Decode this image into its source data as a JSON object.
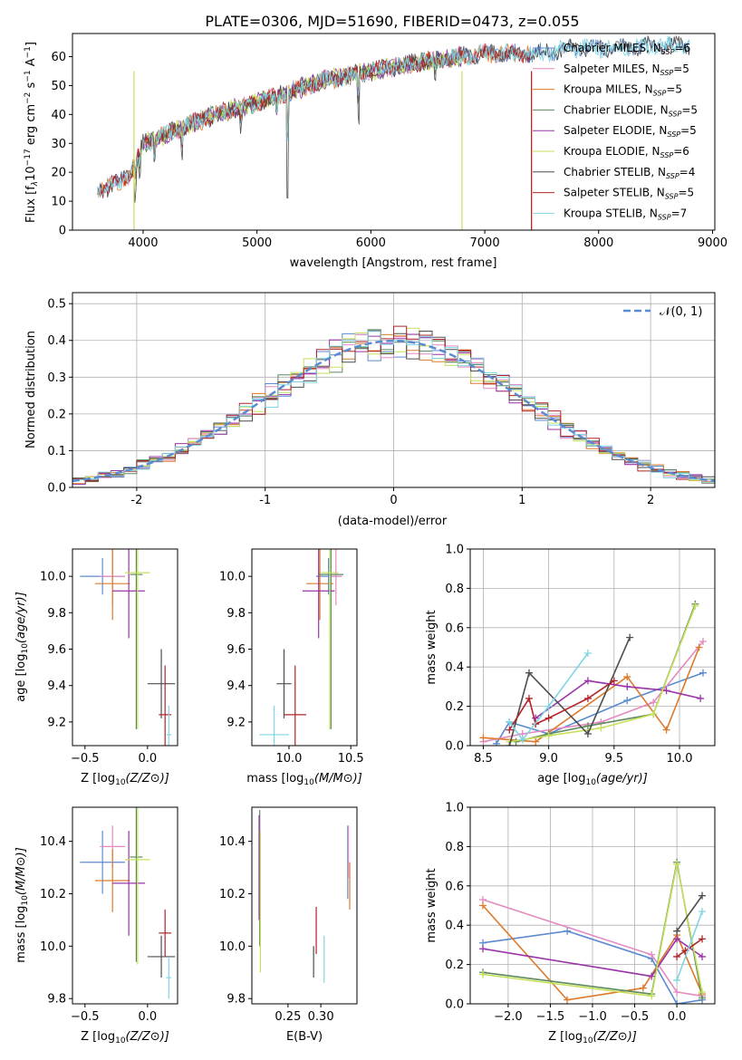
{
  "figure": {
    "title": "PLATE=0306, MJD=51690, FIBERID=0473, z=0.055"
  },
  "model_colors": {
    "Chabrier MILES": "#5b8bd0",
    "Salpeter MILES": "#e58ac0",
    "Kroupa MILES": "#dd7a2c",
    "Chabrier ELODIE": "#5e8a5e",
    "Salpeter ELODIE": "#9a34a8",
    "Kroupa ELODIE": "#c6e05a",
    "Chabrier STELIB": "#4d4d4d",
    "Salpeter STELIB": "#b0242a",
    "Kroupa STELIB": "#7fd6e2"
  },
  "chart_data": [
    {
      "id": "spectrum",
      "type": "line",
      "xlabel": "wavelength [Angstrom, rest frame]",
      "ylabel_parts": [
        "Flux [f",
        "λ",
        "10",
        "−17",
        " erg cm",
        "−2",
        " s",
        "−1",
        " A",
        "−1",
        "]"
      ],
      "xlim": [
        3380,
        9020
      ],
      "ylim": [
        0,
        68
      ],
      "xticks": [
        4000,
        5000,
        6000,
        7000,
        8000,
        9000
      ],
      "yticks": [
        0,
        10,
        20,
        30,
        40,
        50,
        60
      ],
      "grid": false,
      "legend_position": "upper-right",
      "legend": [
        {
          "model": "Chabrier MILES",
          "n": "6"
        },
        {
          "model": "Salpeter MILES",
          "n": "5"
        },
        {
          "model": "Kroupa MILES",
          "n": "5"
        },
        {
          "model": "Chabrier ELODIE",
          "n": "5"
        },
        {
          "model": "Salpeter ELODIE",
          "n": "5"
        },
        {
          "model": "Kroupa ELODIE",
          "n": "6"
        },
        {
          "model": "Chabrier STELIB",
          "n": "4"
        },
        {
          "model": "Salpeter STELIB",
          "n": "5"
        },
        {
          "model": "Kroupa STELIB",
          "n": "7"
        }
      ],
      "legend_prefix_n": "N",
      "legend_sub": "SSP",
      "continuum": {
        "x": [
          3600,
          3700,
          3800,
          3900,
          4000,
          4200,
          4500,
          4800,
          5000,
          5300,
          5600,
          6000,
          6400,
          6800,
          7000,
          7400,
          7800,
          8200,
          8600,
          8800
        ],
        "y": [
          14,
          15,
          17,
          20,
          30,
          33,
          38,
          42,
          44,
          48,
          52,
          55,
          58,
          60,
          61,
          61,
          63,
          63,
          64,
          64
        ]
      },
      "model_ranges": [
        {
          "model": "Chabrier MILES",
          "x_min": 3600,
          "x_max": 8800
        },
        {
          "model": "Salpeter MILES",
          "x_min": 3600,
          "x_max": 7400
        },
        {
          "model": "Kroupa MILES",
          "x_min": 3600,
          "x_max": 7400
        },
        {
          "model": "Chabrier ELODIE",
          "x_min": 3900,
          "x_max": 6800
        },
        {
          "model": "Salpeter ELODIE",
          "x_min": 3900,
          "x_max": 6800
        },
        {
          "model": "Kroupa ELODIE",
          "x_min": 3900,
          "x_max": 6800
        },
        {
          "model": "Chabrier STELIB",
          "x_min": 3600,
          "x_max": 8800
        },
        {
          "model": "Salpeter STELIB",
          "x_min": 3600,
          "x_max": 7400
        },
        {
          "model": "Kroupa STELIB",
          "x_min": 3600,
          "x_max": 8800
        }
      ]
    },
    {
      "id": "residuals",
      "type": "step-histogram",
      "xlabel": "(data-model)/error",
      "ylabel": "Normed distribution",
      "xlim": [
        -2.5,
        2.5
      ],
      "ylim": [
        0,
        0.53
      ],
      "xticks": [
        -2,
        -1,
        0,
        1,
        2
      ],
      "yticks": [
        0.0,
        0.1,
        0.2,
        0.3,
        0.4,
        0.5
      ],
      "grid": true,
      "bin_width": 0.1,
      "legend_position": "upper-right",
      "reference_label": "𝒩(0, 1)",
      "reference": {
        "type": "gaussian",
        "mean": 0,
        "sigma": 1
      }
    },
    {
      "id": "age-vs-Z",
      "type": "errorbar",
      "xlabel": "Z [log10(Z/Z⊙)]",
      "ylabel": "age  [log10(age/yr)]",
      "xlim": [
        -0.6,
        0.24
      ],
      "ylim": [
        9.07,
        10.15
      ],
      "xticks": [
        -0.5,
        0.0
      ],
      "xtick_labels": [
        "−0.5",
        "0.0"
      ],
      "yticks": [
        9.2,
        9.4,
        9.6,
        9.8,
        10.0
      ],
      "points": [
        {
          "model": "Chabrier MILES",
          "x": -0.36,
          "y": 10.0,
          "xerr": 0.18,
          "yerr": 0.1
        },
        {
          "model": "Salpeter MILES",
          "x": -0.28,
          "y": 10.0,
          "xerr": 0.1,
          "yerr": 0.16
        },
        {
          "model": "Kroupa MILES",
          "x": -0.28,
          "y": 9.96,
          "xerr": 0.14,
          "yerr": 0.2
        },
        {
          "model": "Chabrier ELODIE",
          "x": -0.09,
          "y": 10.01,
          "xerr": 0.05,
          "yerr": 0.85
        },
        {
          "model": "Salpeter ELODIE",
          "x": -0.15,
          "y": 9.92,
          "xerr": 0.13,
          "yerr": 0.26
        },
        {
          "model": "Kroupa ELODIE",
          "x": -0.08,
          "y": 10.02,
          "xerr": 0.1,
          "yerr": 0.86
        },
        {
          "model": "Chabrier STELIB",
          "x": 0.11,
          "y": 9.41,
          "xerr": 0.11,
          "yerr": 0.19
        },
        {
          "model": "Salpeter STELIB",
          "x": 0.14,
          "y": 9.24,
          "xerr": 0.05,
          "yerr": 0.27
        },
        {
          "model": "Kroupa STELIB",
          "x": 0.17,
          "y": 9.13,
          "xerr": 0.02,
          "yerr": 0.16
        }
      ]
    },
    {
      "id": "age-vs-mass",
      "type": "errorbar",
      "xlabel": "mass [log10(M/M⊙)]",
      "ylabel": "",
      "xlim": [
        9.7,
        10.55
      ],
      "ylim": [
        9.07,
        10.15
      ],
      "xticks": [
        10.0,
        10.5
      ],
      "xtick_labels": [
        "10.0",
        "10.5"
      ],
      "yticks": [
        9.2,
        9.4,
        9.6,
        9.8,
        10.0
      ],
      "points": [
        {
          "model": "Chabrier MILES",
          "x": 10.32,
          "y": 10.0,
          "xerr": 0.1,
          "yerr": 0.1
        },
        {
          "model": "Salpeter MILES",
          "x": 10.38,
          "y": 10.0,
          "xerr": 0.05,
          "yerr": 0.16
        },
        {
          "model": "Kroupa MILES",
          "x": 10.25,
          "y": 9.96,
          "xerr": 0.11,
          "yerr": 0.2
        },
        {
          "model": "Chabrier ELODIE",
          "x": 10.34,
          "y": 10.01,
          "xerr": 0.1,
          "yerr": 0.85
        },
        {
          "model": "Salpeter ELODIE",
          "x": 10.24,
          "y": 9.92,
          "xerr": 0.13,
          "yerr": 0.26
        },
        {
          "model": "Kroupa ELODIE",
          "x": 10.33,
          "y": 10.02,
          "xerr": 0.07,
          "yerr": 0.86
        },
        {
          "model": "Chabrier STELIB",
          "x": 9.96,
          "y": 9.41,
          "xerr": 0.06,
          "yerr": 0.19
        },
        {
          "model": "Salpeter STELIB",
          "x": 10.05,
          "y": 9.24,
          "xerr": 0.09,
          "yerr": 0.27
        },
        {
          "model": "Kroupa STELIB",
          "x": 9.88,
          "y": 9.13,
          "xerr": 0.12,
          "yerr": 0.16
        }
      ]
    },
    {
      "id": "weight-vs-age",
      "type": "line",
      "xlabel": "age  [log10(age/yr)]",
      "ylabel": "mass weight",
      "xlim": [
        8.4,
        10.27
      ],
      "ylim": [
        0,
        1.0
      ],
      "xticks": [
        8.5,
        9.0,
        9.5,
        10.0
      ],
      "xtick_labels": [
        "8.5",
        "9.0",
        "9.5",
        "10.0"
      ],
      "yticks": [
        0.0,
        0.2,
        0.4,
        0.6,
        0.8,
        1.0
      ],
      "grid": true,
      "series": [
        {
          "model": "Chabrier MILES",
          "x": [
            8.6,
            8.7,
            9.0,
            9.6,
            10.18
          ],
          "y": [
            0.01,
            0.12,
            0.06,
            0.23,
            0.37
          ]
        },
        {
          "model": "Salpeter MILES",
          "x": [
            8.5,
            8.8,
            9.4,
            9.8,
            10.18
          ],
          "y": [
            0.02,
            0.06,
            0.12,
            0.22,
            0.53
          ]
        },
        {
          "model": "Kroupa MILES",
          "x": [
            8.5,
            8.9,
            9.6,
            9.9,
            10.15
          ],
          "y": [
            0.04,
            0.02,
            0.35,
            0.08,
            0.5
          ]
        },
        {
          "model": "Chabrier ELODIE",
          "x": [
            8.75,
            9.0,
            9.3,
            9.8,
            10.12
          ],
          "y": [
            0.02,
            0.06,
            0.1,
            0.16,
            0.72
          ]
        },
        {
          "model": "Salpeter ELODIE",
          "x": [
            8.9,
            9.3,
            9.6,
            9.9,
            10.16
          ],
          "y": [
            0.14,
            0.33,
            0.3,
            0.28,
            0.24
          ]
        },
        {
          "model": "Kroupa ELODIE",
          "x": [
            8.7,
            9.0,
            9.4,
            9.8,
            10.12
          ],
          "y": [
            0.02,
            0.05,
            0.09,
            0.16,
            0.71
          ]
        },
        {
          "model": "Chabrier STELIB",
          "x": [
            8.7,
            8.85,
            9.3,
            9.62
          ],
          "y": [
            0.0,
            0.37,
            0.06,
            0.55
          ]
        },
        {
          "model": "Salpeter STELIB",
          "x": [
            8.7,
            8.85,
            8.9,
            9.0,
            9.3,
            9.5
          ],
          "y": [
            0.08,
            0.24,
            0.11,
            0.14,
            0.24,
            0.33
          ]
        },
        {
          "model": "Kroupa STELIB",
          "x": [
            8.7,
            8.8,
            9.0,
            9.3
          ],
          "y": [
            0.12,
            0.03,
            0.2,
            0.47
          ]
        }
      ]
    },
    {
      "id": "mass-vs-Z",
      "type": "errorbar",
      "xlabel": "Z [log10(Z/Z⊙)]",
      "ylabel": "mass [log10(M/M⊙)]",
      "xlim": [
        -0.6,
        0.24
      ],
      "ylim": [
        9.78,
        10.53
      ],
      "xticks": [
        -0.5,
        0.0
      ],
      "xtick_labels": [
        "−0.5",
        "0.0"
      ],
      "yticks": [
        9.8,
        10.0,
        10.2,
        10.4
      ],
      "points": [
        {
          "model": "Chabrier MILES",
          "x": -0.36,
          "y": 10.32,
          "xerr": 0.18,
          "yerr": 0.12
        },
        {
          "model": "Salpeter MILES",
          "x": -0.28,
          "y": 10.38,
          "xerr": 0.1,
          "yerr": 0.08
        },
        {
          "model": "Kroupa MILES",
          "x": -0.28,
          "y": 10.25,
          "xerr": 0.14,
          "yerr": 0.12
        },
        {
          "model": "Chabrier ELODIE",
          "x": -0.09,
          "y": 10.34,
          "xerr": 0.05,
          "yerr": 0.4
        },
        {
          "model": "Salpeter ELODIE",
          "x": -0.15,
          "y": 10.24,
          "xerr": 0.13,
          "yerr": 0.2
        },
        {
          "model": "Kroupa ELODIE",
          "x": -0.08,
          "y": 10.33,
          "xerr": 0.1,
          "yerr": 0.4
        },
        {
          "model": "Chabrier STELIB",
          "x": 0.11,
          "y": 9.96,
          "xerr": 0.11,
          "yerr": 0.08
        },
        {
          "model": "Salpeter STELIB",
          "x": 0.14,
          "y": 10.05,
          "xerr": 0.05,
          "yerr": 0.09
        },
        {
          "model": "Kroupa STELIB",
          "x": 0.17,
          "y": 9.88,
          "xerr": 0.02,
          "yerr": 0.08
        }
      ]
    },
    {
      "id": "mass-vs-ebv",
      "type": "errorbar",
      "xlabel": "E(B-V)",
      "ylabel": "",
      "xlim": [
        0.195,
        0.355
      ],
      "ylim": [
        9.78,
        10.53
      ],
      "xticks": [
        0.25,
        0.3
      ],
      "xtick_labels": [
        "0.25",
        "0.30"
      ],
      "yticks": [
        9.8,
        10.0,
        10.2,
        10.4
      ],
      "points": [
        {
          "model": "Chabrier MILES",
          "x": 0.341,
          "y": 10.32,
          "xerr": 0,
          "yerr": 0.14
        },
        {
          "model": "Salpeter MILES",
          "x": 0.342,
          "y": 10.36,
          "xerr": 0,
          "yerr": 0.1
        },
        {
          "model": "Kroupa MILES",
          "x": 0.344,
          "y": 10.23,
          "xerr": 0,
          "yerr": 0.09
        },
        {
          "model": "Chabrier ELODIE",
          "x": 0.207,
          "y": 10.26,
          "xerr": 0,
          "yerr": 0.26
        },
        {
          "model": "Salpeter ELODIE",
          "x": 0.206,
          "y": 10.3,
          "xerr": 0,
          "yerr": 0.2
        },
        {
          "model": "Kroupa ELODIE",
          "x": 0.208,
          "y": 10.17,
          "xerr": 0,
          "yerr": 0.27
        },
        {
          "model": "Chabrier STELIB",
          "x": 0.289,
          "y": 9.94,
          "xerr": 0,
          "yerr": 0.06
        },
        {
          "model": "Salpeter STELIB",
          "x": 0.293,
          "y": 10.06,
          "xerr": 0,
          "yerr": 0.09
        },
        {
          "model": "Kroupa STELIB",
          "x": 0.305,
          "y": 9.95,
          "xerr": 0,
          "yerr": 0.09
        }
      ]
    },
    {
      "id": "weight-vs-Z",
      "type": "line",
      "xlabel": "Z [log10(Z/Z⊙)]",
      "ylabel": "mass weight",
      "xlim": [
        -2.45,
        0.45
      ],
      "ylim": [
        0,
        1.0
      ],
      "xticks": [
        -2.0,
        -1.5,
        -1.0,
        -0.5,
        0.0
      ],
      "xtick_labels": [
        "−2.0",
        "−1.5",
        "−1.0",
        "−0.5",
        "0.0"
      ],
      "yticks": [
        0.0,
        0.2,
        0.4,
        0.6,
        0.8,
        1.0
      ],
      "grid": true,
      "series": [
        {
          "model": "Chabrier MILES",
          "x": [
            -2.3,
            -1.3,
            -0.3,
            0.0,
            0.3
          ],
          "y": [
            0.31,
            0.37,
            0.23,
            0.0,
            0.02
          ]
        },
        {
          "model": "Salpeter MILES",
          "x": [
            -2.3,
            -0.3,
            0.0,
            0.3
          ],
          "y": [
            0.53,
            0.25,
            0.06,
            0.04
          ]
        },
        {
          "model": "Kroupa MILES",
          "x": [
            -2.3,
            -1.3,
            -0.4,
            0.0,
            0.3
          ],
          "y": [
            0.5,
            0.02,
            0.08,
            0.35,
            0.05
          ]
        },
        {
          "model": "Chabrier ELODIE",
          "x": [
            -2.3,
            -0.3,
            0.0,
            0.3
          ],
          "y": [
            0.16,
            0.05,
            0.72,
            0.03
          ]
        },
        {
          "model": "Salpeter ELODIE",
          "x": [
            -2.3,
            -0.3,
            0.0,
            0.3
          ],
          "y": [
            0.28,
            0.14,
            0.33,
            0.24
          ]
        },
        {
          "model": "Kroupa ELODIE",
          "x": [
            -2.3,
            -0.3,
            0.0,
            0.3
          ],
          "y": [
            0.15,
            0.04,
            0.71,
            0.06
          ]
        },
        {
          "model": "Chabrier STELIB",
          "x": [
            0.0,
            0.3
          ],
          "y": [
            0.37,
            0.55
          ]
        },
        {
          "model": "Salpeter STELIB",
          "x": [
            0.0,
            0.1,
            0.3
          ],
          "y": [
            0.24,
            0.27,
            0.33
          ]
        },
        {
          "model": "Kroupa STELIB",
          "x": [
            0.0,
            0.3
          ],
          "y": [
            0.12,
            0.47
          ]
        }
      ]
    }
  ]
}
